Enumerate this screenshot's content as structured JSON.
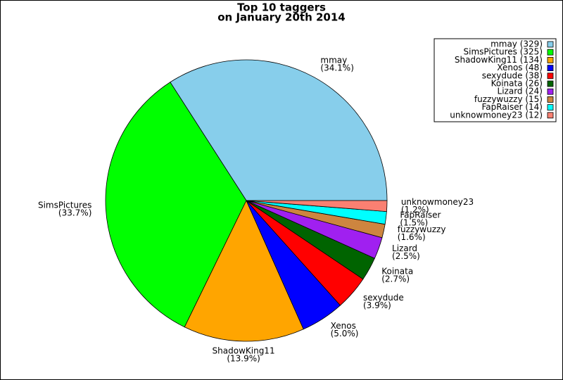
{
  "chart_data": {
    "type": "pie",
    "title": [
      "Top 10 taggers",
      "on January 20th 2014"
    ],
    "categories": [
      "mmay",
      "SimsPictures",
      "ShadowKing11",
      "Xenos",
      "sexydude",
      "Koinata",
      "Lizard",
      "fuzzywuzzy",
      "FapRaiser",
      "unknowmoney23"
    ],
    "values": [
      329,
      325,
      134,
      48,
      38,
      26,
      24,
      15,
      14,
      12
    ],
    "value_labels": [
      "(34.1%)",
      "(33.7%)",
      "(13.9%)",
      "(5.0%)",
      "(3.9%)",
      "(2.7%)",
      "(2.5%)",
      "(1.6%)",
      "(1.5%)",
      "(1.2%)"
    ],
    "legend_labels": [
      "mmay (329)",
      "SimsPictures (325)",
      "ShadowKing11 (134)",
      "Xenos (48)",
      "sexydude (38)",
      "Koinata (26)",
      "Lizard (24)",
      "fuzzywuzzy (15)",
      "FapRaiser (14)",
      "unknowmoney23 (12)"
    ],
    "colors": [
      "#87ceeb",
      "#00ff00",
      "#ffa500",
      "#0000ff",
      "#ff0000",
      "#006400",
      "#a020f0",
      "#cd853f",
      "#00ffff",
      "#fa8072"
    ],
    "legend": "upper right"
  }
}
